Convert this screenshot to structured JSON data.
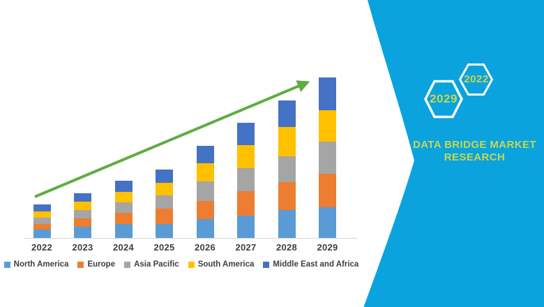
{
  "chart_data": {
    "type": "bar",
    "stacked": true,
    "categories": [
      "2022",
      "2023",
      "2024",
      "2025",
      "2026",
      "2027",
      "2028",
      "2029"
    ],
    "series": [
      {
        "name": "North America",
        "color": "#5B9BD5",
        "values": [
          12,
          16,
          20,
          20,
          27,
          32,
          40,
          44
        ]
      },
      {
        "name": "Europe",
        "color": "#ED7D31",
        "values": [
          8,
          12,
          16,
          22,
          26,
          35,
          40,
          48
        ]
      },
      {
        "name": "Asia Pacific",
        "color": "#A5A5A5",
        "values": [
          9,
          12,
          15,
          19,
          28,
          33,
          37,
          46
        ]
      },
      {
        "name": "South America",
        "color": "#FFC000",
        "values": [
          9,
          12,
          15,
          18,
          26,
          33,
          42,
          45
        ]
      },
      {
        "name": "Middle East and Africa",
        "color": "#4472C4",
        "values": [
          10,
          12,
          16,
          19,
          25,
          32,
          38,
          47
        ]
      }
    ],
    "legend_position": "bottom",
    "grid": false,
    "axis_line_color": "#D6D6D6",
    "label_color": "#3F3F3F",
    "trend_arrow_color": "#5FAC43"
  },
  "brand_panel": {
    "background_color": "#0AA3DE",
    "hexagon_outline_color": "#FFFFFF",
    "hexagon_large_label": "2029",
    "hexagon_small_label": "2022",
    "brand_line1": "DATA BRIDGE MARKET",
    "brand_line2": "RESEARCH",
    "text_color": "#C8D64F"
  }
}
